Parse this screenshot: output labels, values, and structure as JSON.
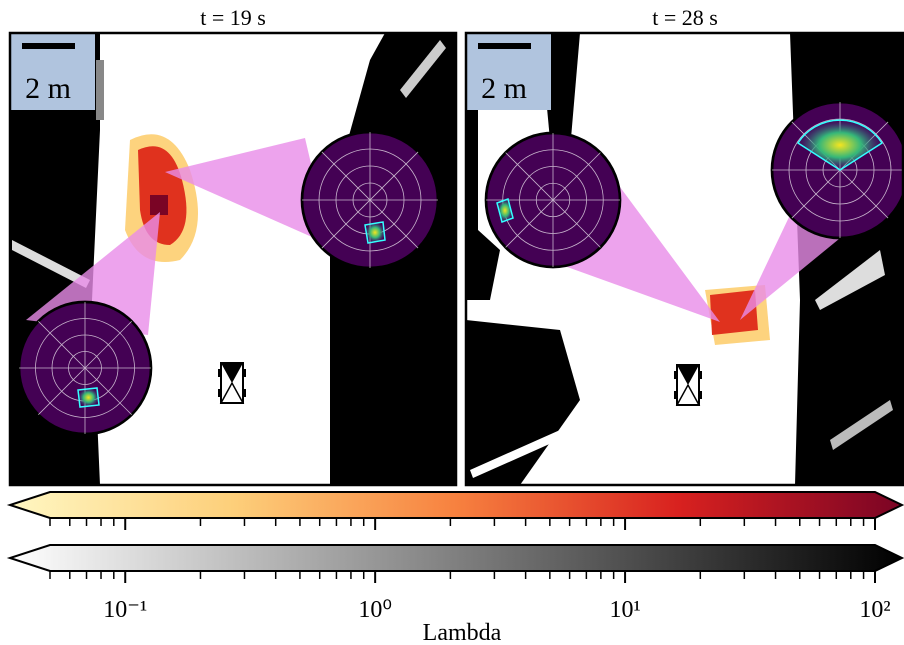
{
  "chart_data": {
    "type": "colorbar",
    "panels": [
      {
        "title": "t = 19 s",
        "scale_label": "2 m"
      },
      {
        "title": "t = 28 s",
        "scale_label": "2 m"
      }
    ],
    "xlabel": "Lambda",
    "log_scale": true,
    "xlim": [
      0.05,
      100
    ],
    "xticks": [
      {
        "value": 0.1,
        "label": "10⁻¹"
      },
      {
        "value": 1,
        "label": "10⁰"
      },
      {
        "value": 10,
        "label": "10¹"
      },
      {
        "value": 100,
        "label": "10²"
      }
    ],
    "minor_xticks": [
      0.05,
      0.06,
      0.07,
      0.08,
      0.09,
      0.2,
      0.3,
      0.4,
      0.5,
      0.6,
      0.7,
      0.8,
      0.9,
      2,
      3,
      4,
      5,
      6,
      7,
      8,
      9,
      20,
      30,
      40,
      50,
      60,
      70,
      80,
      90
    ]
  }
}
